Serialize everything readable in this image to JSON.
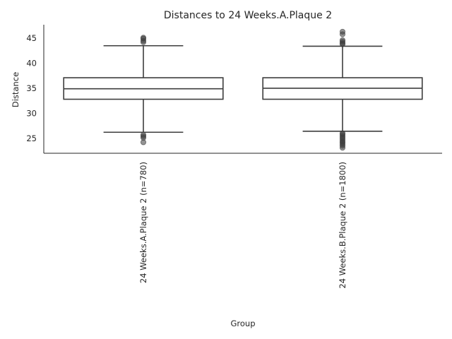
{
  "chart_data": {
    "type": "box",
    "title": "Distances to 24 Weeks.A.Plaque 2",
    "xlabel": "Group",
    "ylabel": "Distance",
    "ylim": [
      22,
      47.7
    ],
    "yticks": [
      25,
      30,
      35,
      40,
      45
    ],
    "grid": false,
    "categories": [
      "24 Weeks.A.Plaque 2 (n=780)",
      "24 Weeks.B.Plaque 2 (n=1800)"
    ],
    "series": [
      {
        "q1": 32.8,
        "median": 34.9,
        "q3": 37.1,
        "whisker_low": 26.2,
        "whisker_high": 43.5,
        "outliers": [
          44.2,
          44.5,
          44.9,
          45.1,
          25.1,
          25.4,
          25.7,
          24.2
        ]
      },
      {
        "q1": 32.8,
        "median": 35.0,
        "q3": 37.1,
        "whisker_low": 26.4,
        "whisker_high": 43.4,
        "outliers": [
          43.8,
          44.0,
          44.3,
          44.6,
          45.8,
          46.3,
          26.0,
          25.8,
          25.5,
          25.2,
          24.9,
          24.6,
          24.3,
          24.1,
          23.8,
          23.5,
          23.1
        ]
      }
    ]
  }
}
